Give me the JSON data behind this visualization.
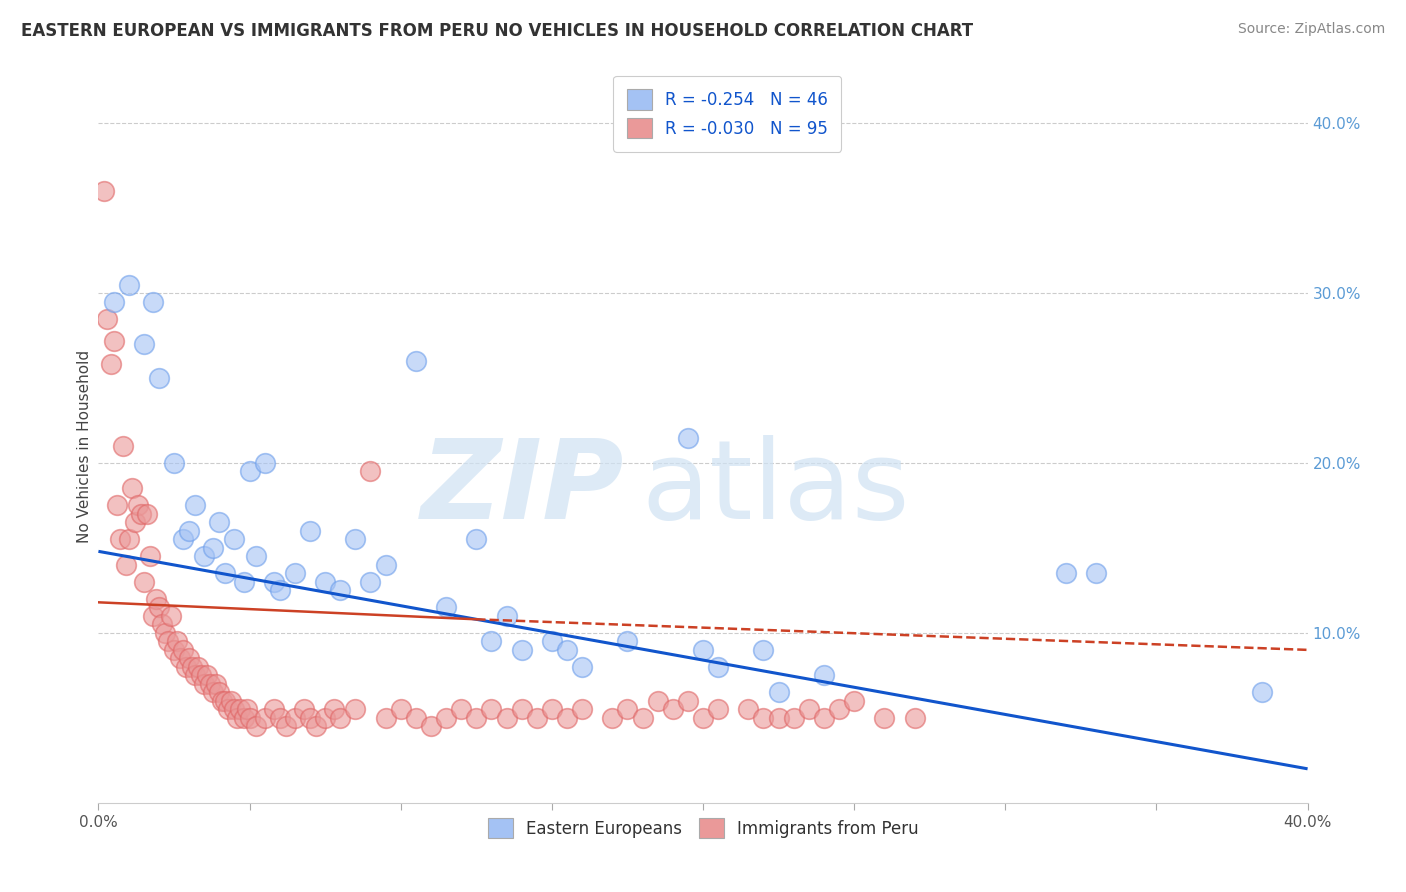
{
  "title": "EASTERN EUROPEAN VS IMMIGRANTS FROM PERU NO VEHICLES IN HOUSEHOLD CORRELATION CHART",
  "source": "Source: ZipAtlas.com",
  "ylabel": "No Vehicles in Household",
  "legend_blue_text": "R = -0.254   N = 46",
  "legend_pink_text": "R = -0.030   N = 95",
  "legend_label_blue": "Eastern Europeans",
  "legend_label_pink": "Immigrants from Peru",
  "blue_color": "#a4c2f4",
  "pink_color": "#ea9999",
  "blue_line_color": "#1155cc",
  "pink_line_color": "#cc4125",
  "blue_scatter": [
    [
      0.005,
      0.295
    ],
    [
      0.01,
      0.305
    ],
    [
      0.015,
      0.27
    ],
    [
      0.018,
      0.295
    ],
    [
      0.02,
      0.25
    ],
    [
      0.025,
      0.2
    ],
    [
      0.028,
      0.155
    ],
    [
      0.03,
      0.16
    ],
    [
      0.032,
      0.175
    ],
    [
      0.035,
      0.145
    ],
    [
      0.038,
      0.15
    ],
    [
      0.04,
      0.165
    ],
    [
      0.042,
      0.135
    ],
    [
      0.045,
      0.155
    ],
    [
      0.048,
      0.13
    ],
    [
      0.05,
      0.195
    ],
    [
      0.052,
      0.145
    ],
    [
      0.055,
      0.2
    ],
    [
      0.058,
      0.13
    ],
    [
      0.06,
      0.125
    ],
    [
      0.065,
      0.135
    ],
    [
      0.07,
      0.16
    ],
    [
      0.075,
      0.13
    ],
    [
      0.08,
      0.125
    ],
    [
      0.085,
      0.155
    ],
    [
      0.09,
      0.13
    ],
    [
      0.095,
      0.14
    ],
    [
      0.105,
      0.26
    ],
    [
      0.115,
      0.115
    ],
    [
      0.125,
      0.155
    ],
    [
      0.13,
      0.095
    ],
    [
      0.135,
      0.11
    ],
    [
      0.14,
      0.09
    ],
    [
      0.15,
      0.095
    ],
    [
      0.155,
      0.09
    ],
    [
      0.16,
      0.08
    ],
    [
      0.175,
      0.095
    ],
    [
      0.195,
      0.215
    ],
    [
      0.2,
      0.09
    ],
    [
      0.205,
      0.08
    ],
    [
      0.22,
      0.09
    ],
    [
      0.225,
      0.065
    ],
    [
      0.24,
      0.075
    ],
    [
      0.32,
      0.135
    ],
    [
      0.33,
      0.135
    ],
    [
      0.385,
      0.065
    ]
  ],
  "pink_scatter": [
    [
      0.002,
      0.36
    ],
    [
      0.003,
      0.285
    ],
    [
      0.004,
      0.258
    ],
    [
      0.005,
      0.272
    ],
    [
      0.006,
      0.175
    ],
    [
      0.007,
      0.155
    ],
    [
      0.008,
      0.21
    ],
    [
      0.009,
      0.14
    ],
    [
      0.01,
      0.155
    ],
    [
      0.011,
      0.185
    ],
    [
      0.012,
      0.165
    ],
    [
      0.013,
      0.175
    ],
    [
      0.014,
      0.17
    ],
    [
      0.015,
      0.13
    ],
    [
      0.016,
      0.17
    ],
    [
      0.017,
      0.145
    ],
    [
      0.018,
      0.11
    ],
    [
      0.019,
      0.12
    ],
    [
      0.02,
      0.115
    ],
    [
      0.021,
      0.105
    ],
    [
      0.022,
      0.1
    ],
    [
      0.023,
      0.095
    ],
    [
      0.024,
      0.11
    ],
    [
      0.025,
      0.09
    ],
    [
      0.026,
      0.095
    ],
    [
      0.027,
      0.085
    ],
    [
      0.028,
      0.09
    ],
    [
      0.029,
      0.08
    ],
    [
      0.03,
      0.085
    ],
    [
      0.031,
      0.08
    ],
    [
      0.032,
      0.075
    ],
    [
      0.033,
      0.08
    ],
    [
      0.034,
      0.075
    ],
    [
      0.035,
      0.07
    ],
    [
      0.036,
      0.075
    ],
    [
      0.037,
      0.07
    ],
    [
      0.038,
      0.065
    ],
    [
      0.039,
      0.07
    ],
    [
      0.04,
      0.065
    ],
    [
      0.041,
      0.06
    ],
    [
      0.042,
      0.06
    ],
    [
      0.043,
      0.055
    ],
    [
      0.044,
      0.06
    ],
    [
      0.045,
      0.055
    ],
    [
      0.046,
      0.05
    ],
    [
      0.047,
      0.055
    ],
    [
      0.048,
      0.05
    ],
    [
      0.049,
      0.055
    ],
    [
      0.05,
      0.05
    ],
    [
      0.052,
      0.045
    ],
    [
      0.055,
      0.05
    ],
    [
      0.058,
      0.055
    ],
    [
      0.06,
      0.05
    ],
    [
      0.062,
      0.045
    ],
    [
      0.065,
      0.05
    ],
    [
      0.068,
      0.055
    ],
    [
      0.07,
      0.05
    ],
    [
      0.072,
      0.045
    ],
    [
      0.075,
      0.05
    ],
    [
      0.078,
      0.055
    ],
    [
      0.08,
      0.05
    ],
    [
      0.085,
      0.055
    ],
    [
      0.09,
      0.195
    ],
    [
      0.095,
      0.05
    ],
    [
      0.1,
      0.055
    ],
    [
      0.105,
      0.05
    ],
    [
      0.11,
      0.045
    ],
    [
      0.115,
      0.05
    ],
    [
      0.12,
      0.055
    ],
    [
      0.125,
      0.05
    ],
    [
      0.13,
      0.055
    ],
    [
      0.135,
      0.05
    ],
    [
      0.14,
      0.055
    ],
    [
      0.145,
      0.05
    ],
    [
      0.15,
      0.055
    ],
    [
      0.155,
      0.05
    ],
    [
      0.16,
      0.055
    ],
    [
      0.17,
      0.05
    ],
    [
      0.175,
      0.055
    ],
    [
      0.18,
      0.05
    ],
    [
      0.185,
      0.06
    ],
    [
      0.19,
      0.055
    ],
    [
      0.195,
      0.06
    ],
    [
      0.2,
      0.05
    ],
    [
      0.205,
      0.055
    ],
    [
      0.215,
      0.055
    ],
    [
      0.22,
      0.05
    ],
    [
      0.225,
      0.05
    ],
    [
      0.23,
      0.05
    ],
    [
      0.235,
      0.055
    ],
    [
      0.24,
      0.05
    ],
    [
      0.245,
      0.055
    ],
    [
      0.25,
      0.06
    ],
    [
      0.26,
      0.05
    ],
    [
      0.27,
      0.05
    ]
  ],
  "blue_line": [
    [
      0.0,
      0.148
    ],
    [
      0.4,
      0.02
    ]
  ],
  "pink_line_solid": [
    [
      0.0,
      0.118
    ],
    [
      0.125,
      0.108
    ]
  ],
  "pink_line_dashed": [
    [
      0.125,
      0.108
    ],
    [
      0.4,
      0.09
    ]
  ],
  "xlim": [
    0.0,
    0.4
  ],
  "ylim": [
    0.0,
    0.42
  ],
  "background_color": "#ffffff",
  "grid_color": "#cccccc",
  "xtick_positions": [
    0.0,
    0.4
  ],
  "xtick_labels": [
    "0.0%",
    "40.0%"
  ],
  "ytick_positions": [
    0.1,
    0.2,
    0.3,
    0.4
  ],
  "ytick_labels": [
    "10.0%",
    "20.0%",
    "30.0%",
    "40.0%"
  ]
}
